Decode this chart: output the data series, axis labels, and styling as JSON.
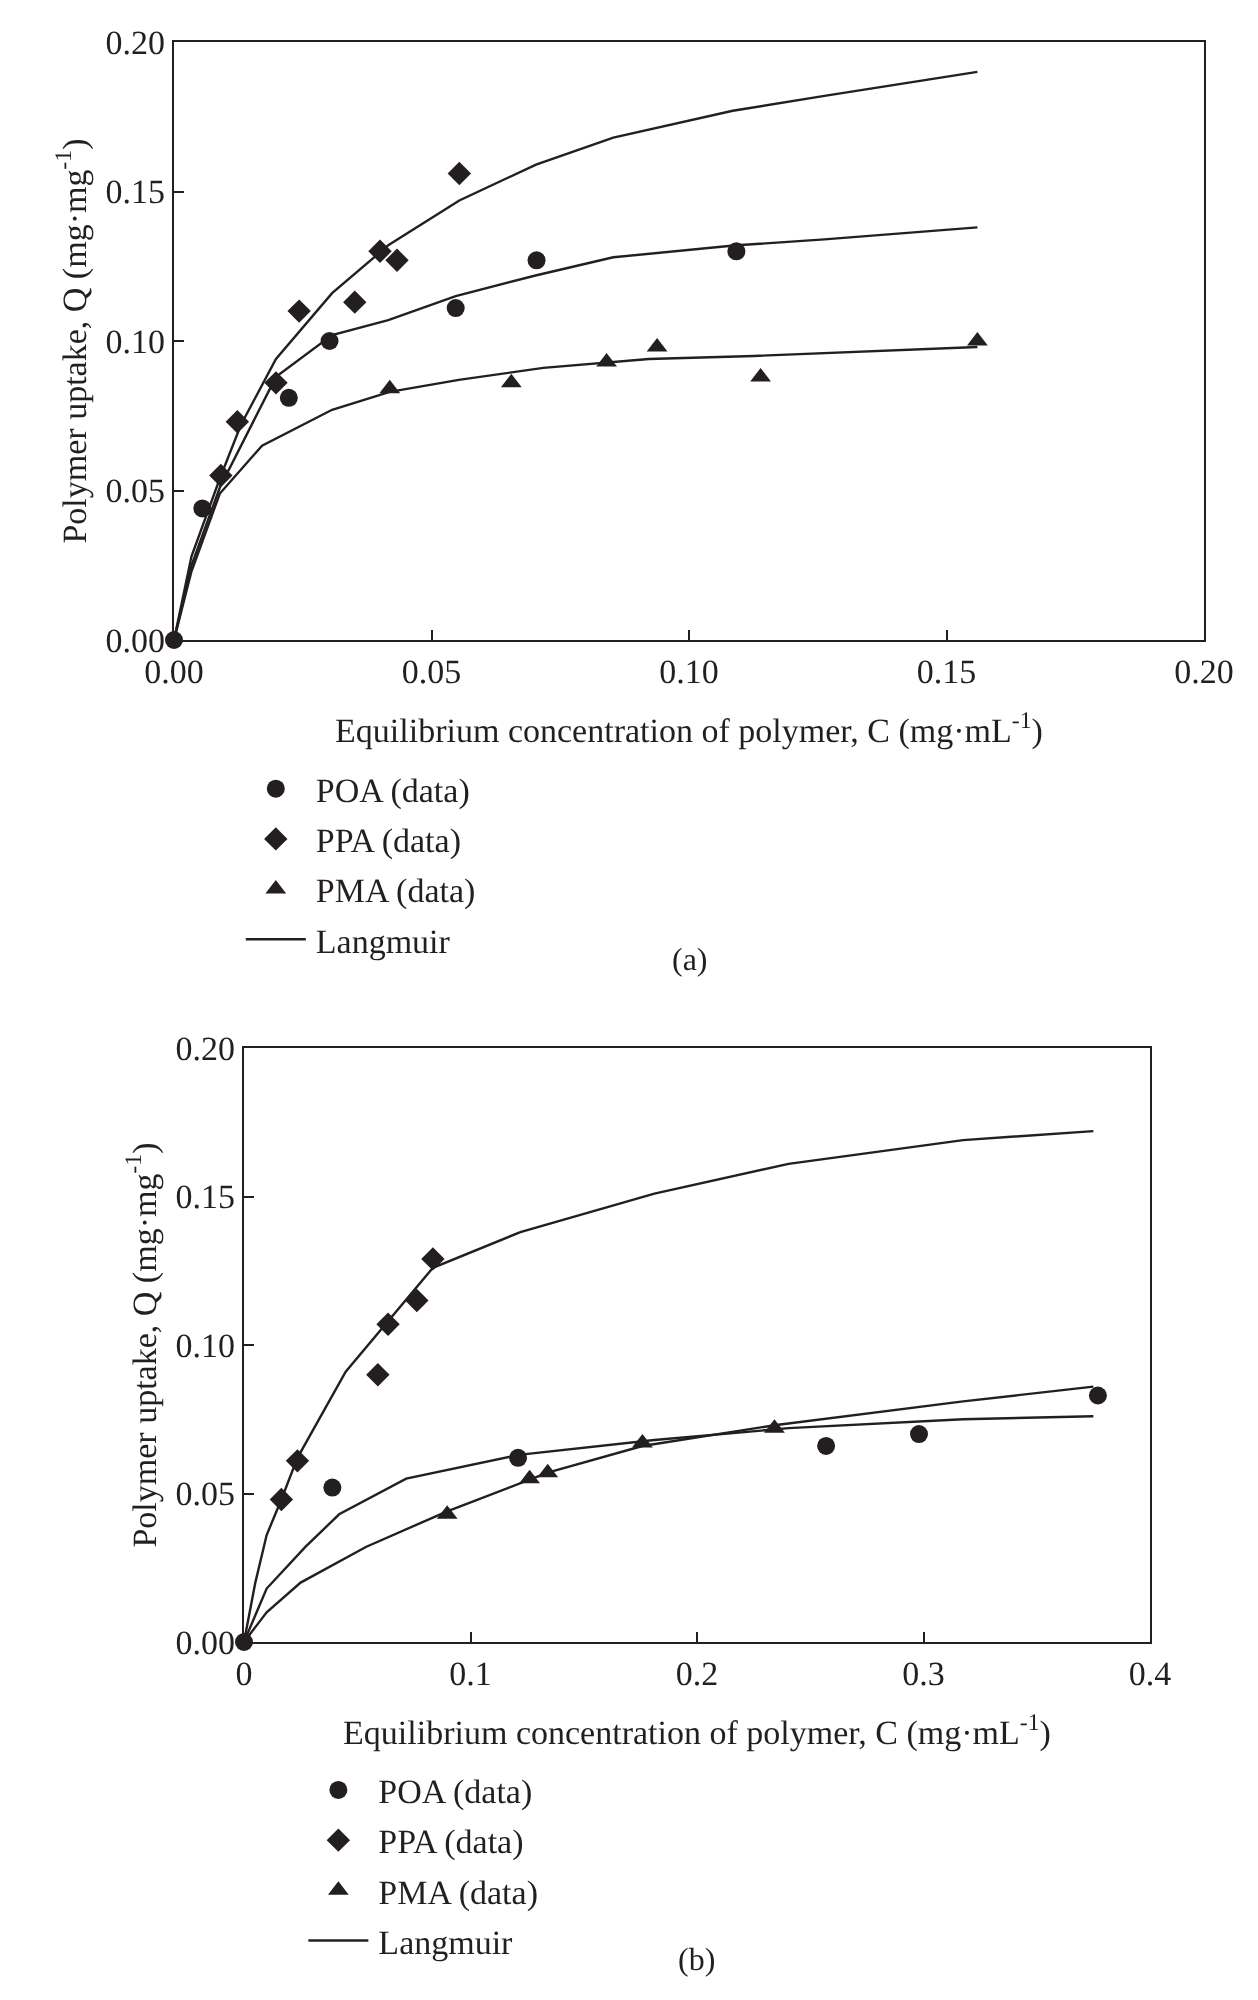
{
  "chart_data": [
    {
      "type": "scatter",
      "xlabel": "Equilibrium concentration of polymer, C (mg·mL$^{-1}$)",
      "ylabel": "Polymer uptake, Q (mg·mg$^{-1}$)",
      "annotations": [
        "(a)"
      ],
      "xlim": [
        0,
        0.2
      ],
      "ylim": [
        0,
        0.2
      ],
      "xticks": [
        {
          "value": 0,
          "label": "0.00"
        },
        {
          "value": 0.05,
          "label": "0.05"
        },
        {
          "value": 0.1,
          "label": "0.10"
        },
        {
          "value": 0.15,
          "label": "0.15"
        },
        {
          "value": 0.2,
          "label": "0.20"
        }
      ],
      "yticks": [
        {
          "value": 0,
          "label": "0.00"
        },
        {
          "value": 0.05,
          "label": "0.05"
        },
        {
          "value": 0.1,
          "label": "0.10"
        },
        {
          "value": 0.15,
          "label": "0.15"
        },
        {
          "value": 0.2,
          "label": "0.20"
        }
      ],
      "grid": false,
      "legend": "bottom",
      "series": [
        {
          "name": "POA (data)",
          "type": "scatter",
          "marker": "circle",
          "color": "#231f20",
          "x": [
            0,
            0.0055,
            0.0223,
            0.0302,
            0.0547,
            0.0704,
            0.1092
          ],
          "values": [
            0,
            0.044,
            0.081,
            0.1,
            0.111,
            0.127,
            0.13
          ]
        },
        {
          "name": "PPA (data)",
          "type": "scatter",
          "marker": "diamond",
          "color": "#231f20",
          "x": [
            0.0091,
            0.0123,
            0.0198,
            0.0243,
            0.0351,
            0.04,
            0.0433,
            0.0554
          ],
          "values": [
            0.055,
            0.073,
            0.086,
            0.11,
            0.113,
            0.13,
            0.127,
            0.156
          ]
        },
        {
          "name": "PMA (data)",
          "type": "scatter",
          "marker": "triangle",
          "color": "#231f20",
          "x": [
            0.0419,
            0.0655,
            0.084,
            0.0938,
            0.1139,
            0.156
          ],
          "values": [
            0.084,
            0.086,
            0.093,
            0.098,
            0.088,
            0.1
          ]
        },
        {
          "name": "Langmuir",
          "type": "line",
          "marker": "none",
          "color": "#231f20",
          "x": [
            0,
            0.0034,
            0.0089,
            0.013,
            0.0198,
            0.0307,
            0.0416,
            0.0554,
            0.0703,
            0.0853,
            0.1085,
            0.1263,
            0.156
          ],
          "values": [
            0,
            0.028,
            0.054,
            0.072,
            0.094,
            0.116,
            0.132,
            0.147,
            0.159,
            0.168,
            0.177,
            0.182,
            0.19
          ]
        },
        {
          "type": "line",
          "marker": "none",
          "color": "#231f20",
          "x": [
            0,
            0.0034,
            0.0089,
            0.0198,
            0.0307,
            0.0416,
            0.0547,
            0.0704,
            0.0853,
            0.1092,
            0.1263,
            0.156
          ],
          "values": [
            0,
            0.025,
            0.051,
            0.088,
            0.102,
            0.107,
            0.115,
            0.122,
            0.128,
            0.132,
            0.134,
            0.138
          ]
        },
        {
          "type": "line",
          "marker": "none",
          "color": "#231f20",
          "x": [
            0,
            0.0034,
            0.0089,
            0.0171,
            0.0307,
            0.0419,
            0.0553,
            0.0717,
            0.0922,
            0.1126,
            0.156
          ],
          "values": [
            0,
            0.023,
            0.049,
            0.065,
            0.077,
            0.083,
            0.087,
            0.091,
            0.094,
            0.095,
            0.098
          ]
        }
      ]
    },
    {
      "type": "scatter",
      "xlabel": "Equilibrium concentration of polymer, C (mg·mL$^{-1}$)",
      "ylabel": "Polymer uptake, Q (mg·mg$^{-1}$)",
      "annotations": [
        "(b)"
      ],
      "xlim": [
        0,
        0.4
      ],
      "ylim": [
        0,
        0.2
      ],
      "xticks": [
        0,
        0.1,
        0.2,
        0.3,
        0.4
      ],
      "yticks": [
        {
          "value": 0,
          "label": "0.00"
        },
        {
          "value": 0.05,
          "label": "0.05"
        },
        {
          "value": 0.1,
          "label": "0.10"
        },
        {
          "value": 0.15,
          "label": "0.15"
        },
        {
          "value": 0.2,
          "label": "0.20"
        }
      ],
      "grid": false,
      "legend": "bottom",
      "series": [
        {
          "name": "POA (data)",
          "type": "scatter",
          "marker": "circle",
          "color": "#231f20",
          "x": [
            0,
            0.039,
            0.121,
            0.257,
            0.298,
            0.377
          ],
          "values": [
            0,
            0.052,
            0.062,
            0.066,
            0.07,
            0.083
          ]
        },
        {
          "name": "PPA (data)",
          "type": "scatter",
          "marker": "diamond",
          "color": "#231f20",
          "x": [
            0.0165,
            0.0236,
            0.0591,
            0.0636,
            0.0763,
            0.0834
          ],
          "values": [
            0.048,
            0.061,
            0.09,
            0.107,
            0.115,
            0.129
          ]
        },
        {
          "name": "PMA (data)",
          "type": "scatter",
          "marker": "triangle",
          "color": "#231f20",
          "x": [
            0.0897,
            0.1261,
            0.1341,
            0.1759,
            0.2342
          ],
          "values": [
            0.043,
            0.055,
            0.057,
            0.067,
            0.072
          ]
        },
        {
          "name": "Langmuir",
          "type": "line",
          "marker": "none",
          "color": "#231f20",
          "x": [
            0,
            0.005,
            0.01,
            0.0165,
            0.0236,
            0.0449,
            0.0834,
            0.122,
            0.1812,
            0.2404,
            0.3175,
            0.375
          ],
          "values": [
            0,
            0.02,
            0.036,
            0.048,
            0.062,
            0.091,
            0.126,
            0.138,
            0.151,
            0.161,
            0.169,
            0.172
          ]
        },
        {
          "type": "line",
          "marker": "none",
          "color": "#231f20",
          "x": [
            0,
            0.01,
            0.0271,
            0.042,
            0.0716,
            0.1213,
            0.1812,
            0.2404,
            0.3175,
            0.375
          ],
          "values": [
            0,
            0.018,
            0.032,
            0.043,
            0.055,
            0.063,
            0.068,
            0.072,
            0.075,
            0.076
          ]
        },
        {
          "type": "line",
          "marker": "none",
          "color": "#231f20",
          "x": [
            0,
            0.01,
            0.025,
            0.0538,
            0.0897,
            0.1341,
            0.1759,
            0.2342,
            0.3175,
            0.375
          ],
          "values": [
            0,
            0.01,
            0.02,
            0.032,
            0.044,
            0.057,
            0.066,
            0.073,
            0.081,
            0.086
          ]
        }
      ]
    }
  ]
}
